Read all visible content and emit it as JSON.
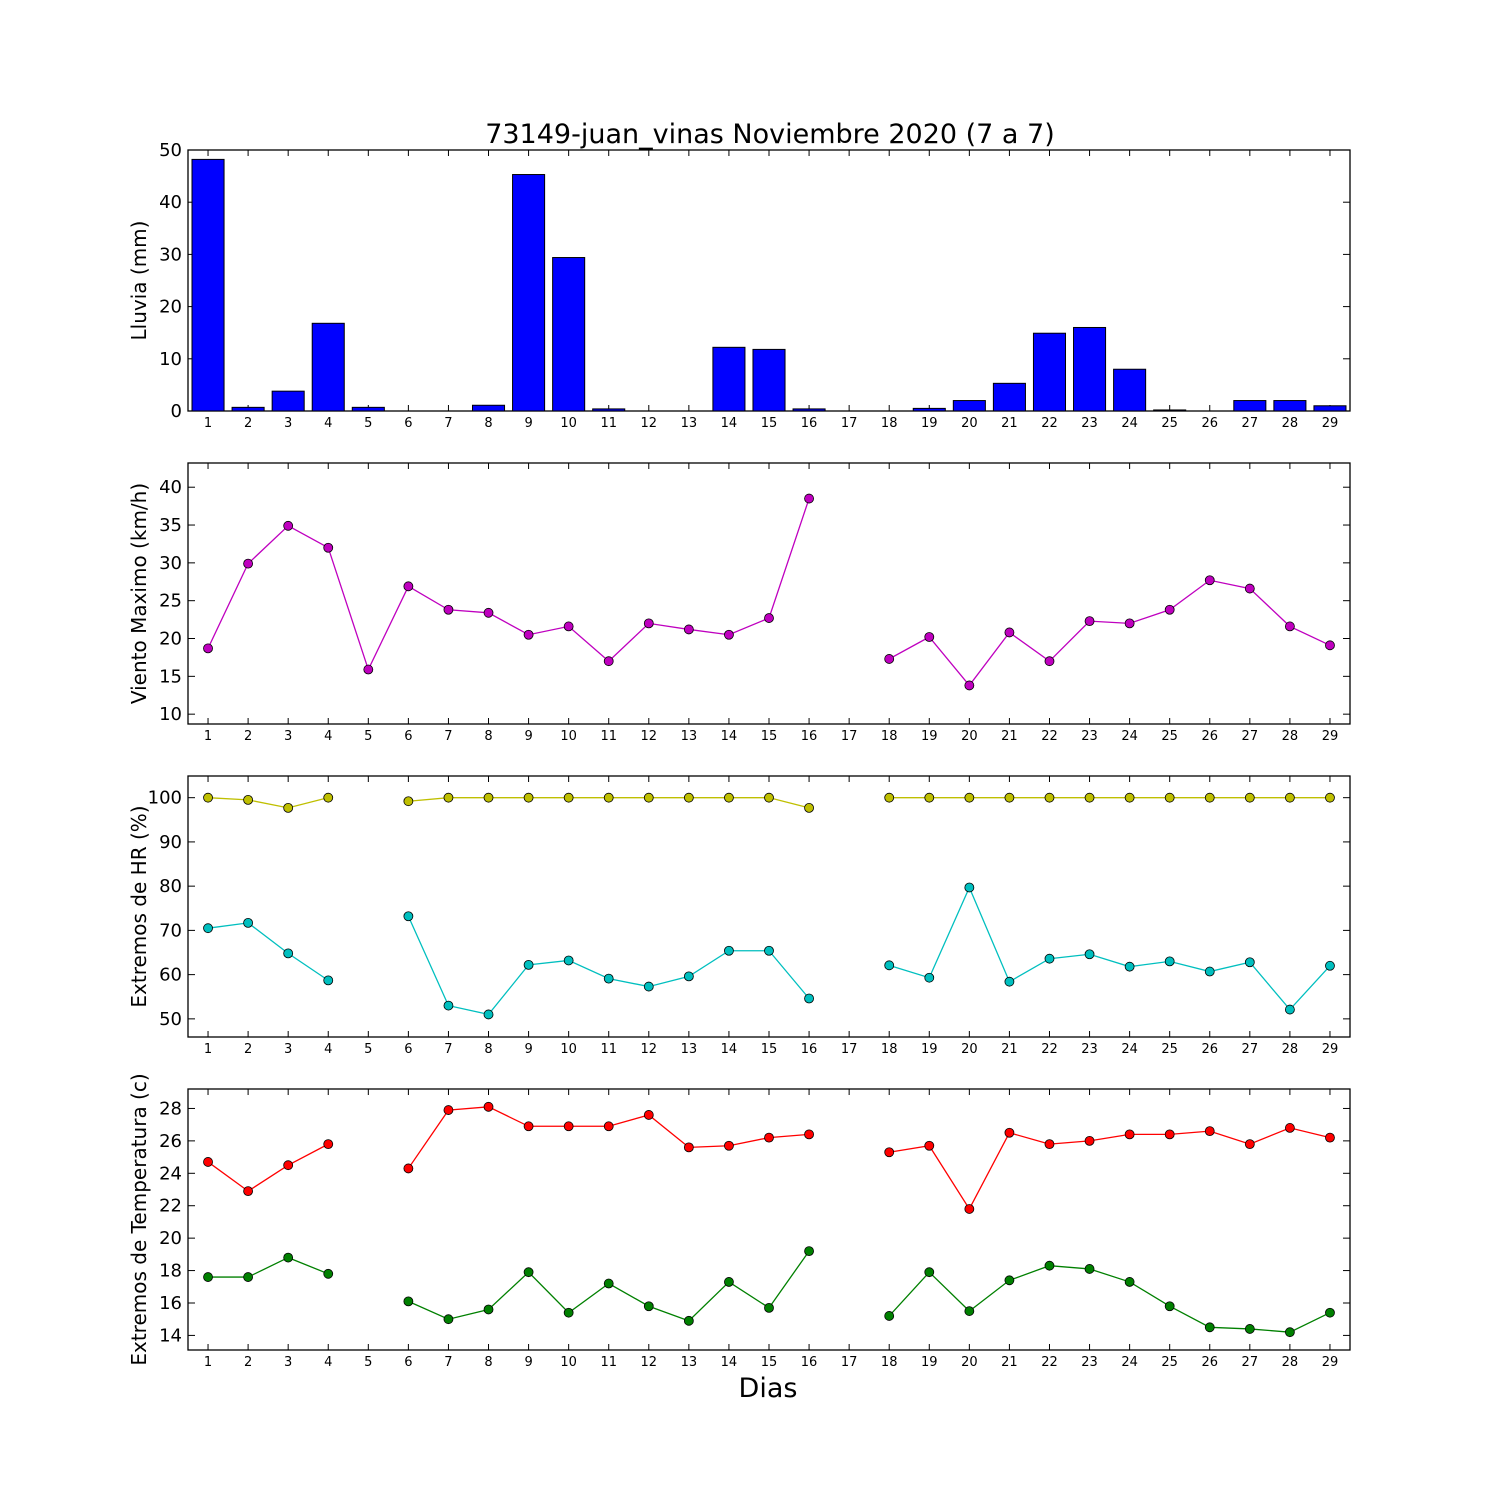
{
  "chart_data": {
    "title": "73149-juan_vinas Noviembre 2020  (7 a 7)",
    "xlabel": "Dias",
    "categories": [
      "1",
      "2",
      "3",
      "4",
      "5",
      "6",
      "7",
      "8",
      "9",
      "10",
      "11",
      "12",
      "13",
      "14",
      "15",
      "16",
      "17",
      "18",
      "19",
      "20",
      "21",
      "22",
      "23",
      "24",
      "25",
      "26",
      "27",
      "28",
      "29"
    ],
    "panels": [
      {
        "type": "bar",
        "ylabel": "Lluvia (mm)",
        "ylim": [
          0,
          50
        ],
        "yticks": [
          0,
          10,
          20,
          30,
          40,
          50
        ],
        "color": "#0000ff",
        "series": [
          {
            "values": [
              48.2,
              0.7,
              3.8,
              16.8,
              0.7,
              0.0,
              0.0,
              1.1,
              45.3,
              29.4,
              0.4,
              0.0,
              0.0,
              12.2,
              11.8,
              0.4,
              0.0,
              0.0,
              0.5,
              2.0,
              5.3,
              14.9,
              16.0,
              8.0,
              0.2,
              0.0,
              2.0,
              2.0,
              1.0
            ]
          }
        ]
      },
      {
        "type": "line",
        "ylabel": "Viento Maximo (km/h)",
        "ylim": [
          8.7,
          43.2
        ],
        "yticks": [
          10,
          15,
          20,
          25,
          30,
          35,
          40
        ],
        "series": [
          {
            "color": "#bf00bf",
            "values": [
              18.7,
              29.9,
              34.9,
              32.0,
              15.9,
              26.9,
              23.8,
              23.4,
              20.5,
              21.6,
              17.0,
              22.0,
              21.2,
              20.5,
              22.7,
              38.5,
              null,
              17.3,
              20.2,
              13.8,
              20.8,
              17.0,
              22.3,
              22.0,
              23.8,
              27.7,
              26.6,
              21.6,
              19.1
            ]
          }
        ]
      },
      {
        "type": "line",
        "ylabel": "Extremos de HR (%)",
        "ylim": [
          45.9,
          104.9
        ],
        "yticks": [
          50,
          60,
          70,
          80,
          90,
          100
        ],
        "series": [
          {
            "color": "#bfbf00",
            "values": [
              100,
              99.5,
              97.7,
              100,
              null,
              99.2,
              100,
              100,
              100,
              100,
              100,
              100,
              100,
              100,
              100,
              97.7,
              null,
              100,
              100,
              100,
              100,
              100,
              100,
              100,
              100,
              100,
              100,
              100,
              100
            ]
          },
          {
            "color": "#00bfbf",
            "values": [
              70.5,
              71.7,
              64.8,
              58.7,
              null,
              73.2,
              53.0,
              51.0,
              62.2,
              63.2,
              59.1,
              57.3,
              59.6,
              65.4,
              65.4,
              54.6,
              null,
              62.1,
              59.3,
              79.7,
              58.4,
              63.6,
              64.6,
              61.8,
              63.0,
              60.7,
              62.8,
              52.1,
              62.0
            ]
          }
        ]
      },
      {
        "type": "line",
        "ylabel": "Extremos de Temperatura (c)",
        "ylim": [
          13.1,
          29.2
        ],
        "yticks": [
          14,
          16,
          18,
          20,
          22,
          24,
          26,
          28
        ],
        "series": [
          {
            "color": "#ff0000",
            "values": [
              24.7,
              22.9,
              24.5,
              25.8,
              null,
              24.3,
              27.9,
              28.1,
              26.9,
              26.9,
              26.9,
              27.6,
              25.6,
              25.7,
              26.2,
              26.4,
              null,
              25.3,
              25.7,
              21.8,
              26.5,
              25.8,
              26.0,
              26.4,
              26.4,
              26.6,
              25.8,
              26.8,
              26.2
            ]
          },
          {
            "color": "#008000",
            "values": [
              17.6,
              17.6,
              18.8,
              17.8,
              null,
              16.1,
              15.0,
              15.6,
              17.9,
              15.4,
              17.2,
              15.8,
              14.9,
              17.3,
              15.7,
              19.2,
              null,
              15.2,
              17.9,
              15.5,
              17.4,
              18.3,
              18.1,
              17.3,
              15.8,
              14.5,
              14.4,
              14.2,
              15.4
            ]
          }
        ]
      }
    ]
  }
}
